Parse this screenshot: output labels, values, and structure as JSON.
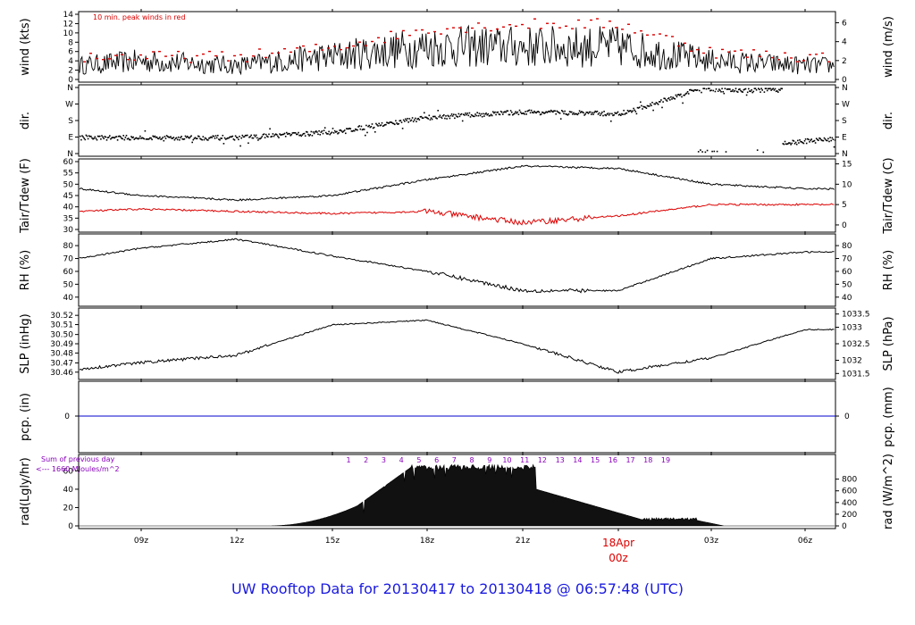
{
  "footer_title": "UW Rooftop Data for 20130417  to  20130418 @ 06:57:48  (UTC)",
  "chart_data": [
    {
      "type": "line",
      "panel": "wind",
      "ylabel_left": "wind (kts)",
      "ylabel_right": "wind (m/s)",
      "ylim_left": [
        0,
        14
      ],
      "ticks_left": [
        "0",
        "2",
        "4",
        "6",
        "8",
        "10",
        "12",
        "14"
      ],
      "ticks_right": [
        "0",
        "2",
        "4",
        "6"
      ],
      "annotation": "10 min. peak winds in red",
      "series": [
        {
          "color": "#000000",
          "x": [
            "06z",
            "09z",
            "12z",
            "15z",
            "18z",
            "21z",
            "00z",
            "03z",
            "06z"
          ],
          "y": [
            3,
            4,
            3,
            5,
            7,
            7,
            7,
            4,
            3
          ]
        },
        {
          "color": "#dd0000",
          "x": [
            "06z",
            "09z",
            "12z",
            "15z",
            "18z",
            "21z",
            "00z",
            "03z",
            "06z"
          ],
          "y": [
            5,
            5,
            5,
            7,
            11,
            12,
            12,
            6,
            5
          ]
        }
      ]
    },
    {
      "type": "scatter",
      "panel": "dir",
      "ylabel_left": "dir.",
      "ylabel_right": "dir.",
      "ticks_left": [
        "N",
        "W",
        "S",
        "E",
        "N"
      ],
      "ticks_right": [
        "N",
        "W",
        "S",
        "E",
        "N"
      ],
      "series": [
        {
          "x": [
            "06z",
            "09z",
            "12z",
            "15z",
            "18z",
            "21z",
            "00z",
            "03z",
            "06z"
          ],
          "y_deg": [
            90,
            90,
            90,
            120,
            200,
            230,
            220,
            355,
            90
          ]
        }
      ]
    },
    {
      "type": "line",
      "panel": "temperature",
      "ylabel_left": "Tair/Tdew (F)",
      "ylabel_right": "Tair/Tdew (C)",
      "ylim_left": [
        30,
        60
      ],
      "ticks_left": [
        "30",
        "35",
        "40",
        "45",
        "50",
        "55",
        "60"
      ],
      "ticks_right": [
        "0",
        "5",
        "10",
        "15"
      ],
      "series": [
        {
          "color": "#000000",
          "x": [
            "06z",
            "09z",
            "12z",
            "15z",
            "18z",
            "21z",
            "00z",
            "03z",
            "06z"
          ],
          "y": [
            48,
            45,
            43,
            45,
            52,
            58,
            57,
            50,
            48
          ]
        },
        {
          "color": "#dd0000",
          "x": [
            "06z",
            "09z",
            "12z",
            "15z",
            "18z",
            "21z",
            "00z",
            "03z",
            "06z"
          ],
          "y": [
            38,
            39,
            38,
            37,
            38,
            33,
            36,
            41,
            41
          ]
        }
      ]
    },
    {
      "type": "line",
      "panel": "rh",
      "ylabel_left": "RH (%)",
      "ylabel_right": "RH (%)",
      "ylim_left": [
        35,
        87
      ],
      "ticks_left": [
        "40",
        "50",
        "60",
        "70",
        "80"
      ],
      "ticks_right": [
        "40",
        "50",
        "60",
        "70",
        "80"
      ],
      "series": [
        {
          "color": "#000000",
          "x": [
            "06z",
            "09z",
            "12z",
            "15z",
            "18z",
            "21z",
            "00z",
            "03z",
            "06z"
          ],
          "y": [
            70,
            78,
            85,
            72,
            60,
            45,
            45,
            70,
            75
          ]
        }
      ]
    },
    {
      "type": "line",
      "panel": "slp",
      "ylabel_left": "SLP (inHg)",
      "ylabel_right": "SLP (hPa)",
      "ylim_left": [
        30.455,
        30.525
      ],
      "ticks_left": [
        "30.46",
        "30.47",
        "30.48",
        "30.49",
        "30.50",
        "30.51",
        "30.52"
      ],
      "ticks_right": [
        "1031.5",
        "1032",
        "1032.5",
        "1033",
        "1033.5"
      ],
      "series": [
        {
          "color": "#000000",
          "x": [
            "06z",
            "09z",
            "12z",
            "15z",
            "18z",
            "21z",
            "00z",
            "03z",
            "06z"
          ],
          "y": [
            30.463,
            30.47,
            30.478,
            30.51,
            30.515,
            30.49,
            30.46,
            30.475,
            30.505
          ]
        }
      ]
    },
    {
      "type": "line",
      "panel": "pcp",
      "ylabel_left": "pcp. (in)",
      "ylabel_right": "pcp. (mm)",
      "ticks_left": [
        "0"
      ],
      "ticks_right": [
        "0"
      ],
      "series": [
        {
          "color": "#0000cc",
          "x": [
            "06z",
            "06z"
          ],
          "y": [
            0,
            0
          ]
        }
      ]
    },
    {
      "type": "area",
      "panel": "rad",
      "ylabel_left": "rad(Lgly/hr)",
      "ylabel_right": "rad (W/m^2)",
      "ylim_left": [
        0,
        75
      ],
      "ticks_left": [
        "0",
        "20",
        "40",
        "60"
      ],
      "ticks_right": [
        "0",
        "200",
        "400",
        "600",
        "800"
      ],
      "annotations": [
        "Sum of previous day",
        "<--- 1660  MJoules/m^2"
      ],
      "hour_marks": [
        "1",
        "2",
        "3",
        "4",
        "5",
        "6",
        "7",
        "8",
        "9",
        "10",
        "11",
        "12",
        "13",
        "14",
        "15",
        "16",
        "17",
        "18",
        "19"
      ],
      "series": [
        {
          "x": [
            "06z",
            "09z",
            "12z",
            "15z",
            "18z",
            "21z",
            "00z",
            "03z",
            "06z"
          ],
          "y": [
            0,
            0,
            0,
            12,
            62,
            68,
            18,
            0,
            0
          ]
        }
      ]
    },
    {
      "type": "axis",
      "panel": "time",
      "xticks": [
        "09z",
        "12z",
        "15z",
        "18z",
        "21z",
        "03z",
        "06z"
      ],
      "date_label": "18Apr",
      "date_label_time": "00z"
    }
  ]
}
